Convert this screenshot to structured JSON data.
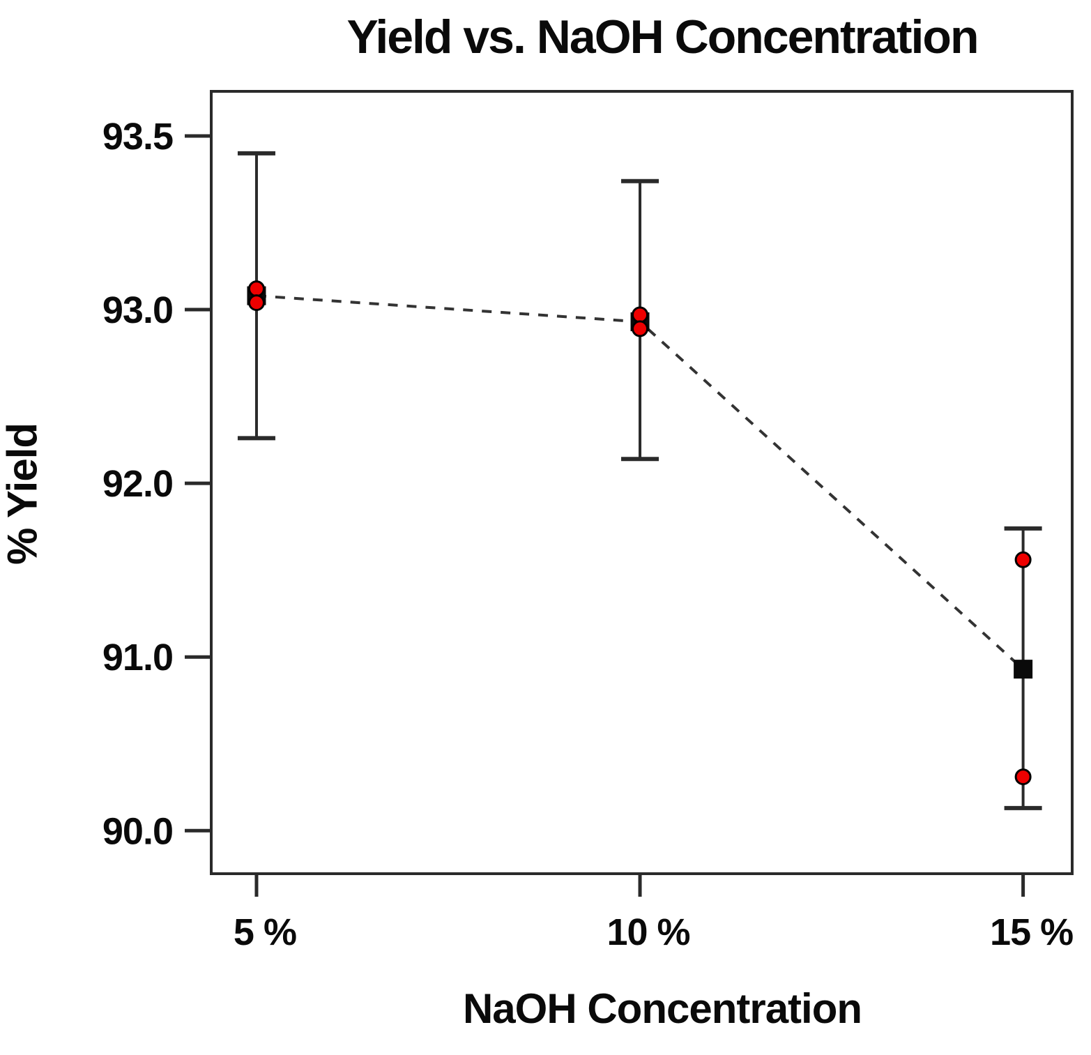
{
  "chart": {
    "title": "Yield vs. NaOH Concentration",
    "xlabel": "NaOH Concentration",
    "ylabel": "% Yield"
  },
  "chart_data": {
    "type": "scatter",
    "title": "Yield vs. NaOH Concentration",
    "xlabel": "NaOH Concentration",
    "ylabel": "% Yield",
    "categories": [
      "5 %",
      "10 %",
      "15 %"
    ],
    "y_axis": {
      "tick_labels": [
        "93.5",
        "93.0",
        "92.0",
        "91.0",
        "90.0"
      ],
      "tick_values": [
        93.5,
        93.0,
        92.0,
        91.0,
        90.0
      ],
      "note": "ticks are evenly spaced in pixels despite unequal value steps (piecewise-linear axis)"
    },
    "groups": [
      {
        "category": "5 %",
        "mean": 93.04,
        "ci_low": 92.26,
        "ci_high": 93.45,
        "replicates": [
          93.06,
          93.02
        ]
      },
      {
        "category": "10 %",
        "mean": 92.93,
        "ci_low": 92.14,
        "ci_high": 93.37,
        "replicates": [
          92.97,
          92.89
        ]
      },
      {
        "category": "15 %",
        "mean": 90.93,
        "ci_low": 90.13,
        "ci_high": 91.74,
        "replicates": [
          91.56,
          90.31
        ]
      }
    ],
    "trend": "dashed line connecting group means",
    "legend": "none",
    "grid": false,
    "colors": {
      "replicate_marker": "#ee0000",
      "marker_outline": "#000000",
      "mean_marker": "#0a0a0a",
      "error_bar": "#2a2a2a",
      "dashed_line": "#333333",
      "axis_border": "#2a2a2a",
      "text": "#0a0a0a",
      "background": "#ffffff"
    }
  }
}
